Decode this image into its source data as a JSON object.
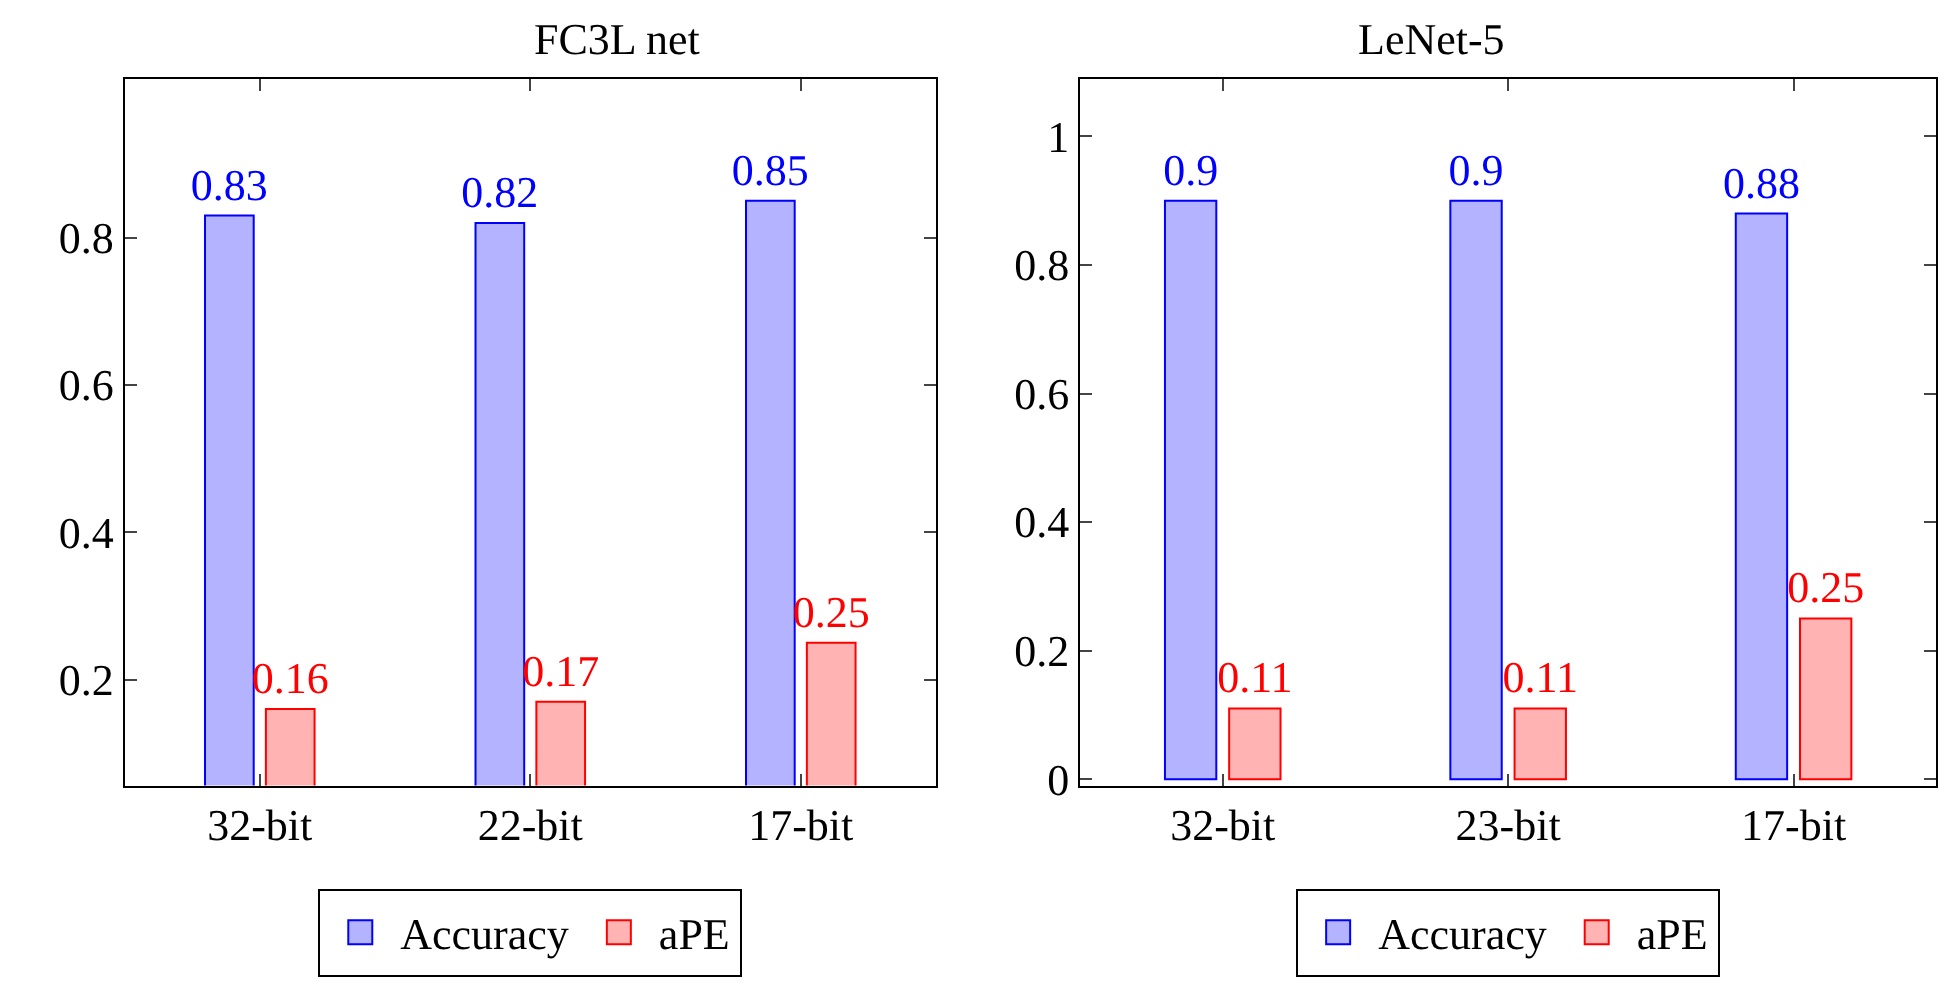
{
  "chart_data": [
    {
      "type": "bar",
      "title": "FC3L net",
      "categories": [
        "32-bit",
        "22-bit",
        "17-bit"
      ],
      "series": [
        {
          "name": "Accuracy",
          "color": "#b3b3ff",
          "values": [
            0.83,
            0.82,
            0.85
          ]
        },
        {
          "name": "aPE",
          "color": "#ffb3b3",
          "values": [
            0.16,
            0.17,
            0.25
          ]
        }
      ],
      "ylim": [
        0.056,
        1.016
      ],
      "yticks": [
        0.2,
        0.4,
        0.6,
        0.8
      ],
      "data_labels": true,
      "legend": "bottom"
    },
    {
      "type": "bar",
      "title": "LeNet-5",
      "categories": [
        "32-bit",
        "23-bit",
        "17-bit"
      ],
      "series": [
        {
          "name": "Accuracy",
          "color": "#b3b3ff",
          "values": [
            0.9,
            0.9,
            0.88
          ]
        },
        {
          "name": "aPE",
          "color": "#ffb3b3",
          "values": [
            0.11,
            0.11,
            0.25
          ]
        }
      ],
      "ylim": [
        -0.01,
        1.09
      ],
      "yticks": [
        0,
        0.2,
        0.4,
        0.6,
        0.8,
        1
      ],
      "data_labels": true,
      "legend": "bottom"
    }
  ]
}
